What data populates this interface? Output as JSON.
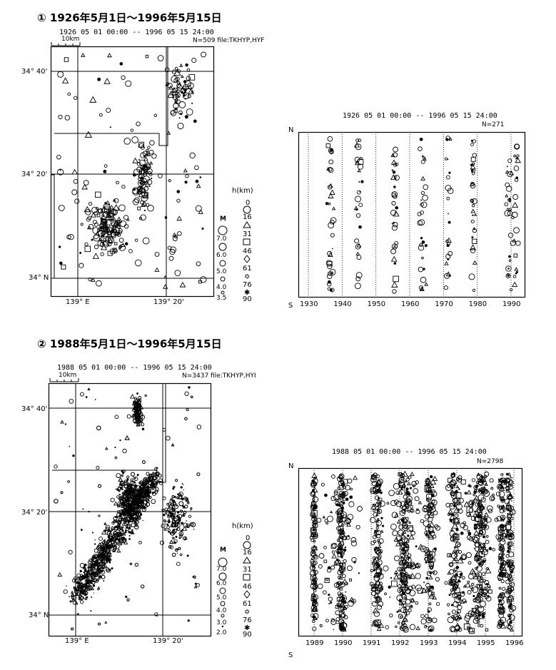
{
  "panel1": {
    "title": "① 1926年5月1日～1996年5月15日",
    "map": {
      "header": "1926 05 01 00:00  --  1996 05 15 24:00",
      "scale_label": "10km",
      "count": "N=509 file:TKHYP,HYF",
      "lat_labels": [
        "34° 40'",
        "34° 20'",
        "34° N"
      ],
      "lon_labels": [
        "139° E",
        "139° 20'"
      ]
    },
    "legend": {
      "depth_title": "h(km)",
      "depths": [
        "0",
        "16",
        "31",
        "46",
        "61",
        "76",
        "90"
      ],
      "mag_title": "M",
      "mags": [
        "7.0",
        "6.0",
        "5.0",
        "4.0",
        "3.5"
      ]
    },
    "timeplot": {
      "header": "1926 05 01 00:00  --  1996 05 15 24:00",
      "count": "N=271",
      "n_label": "N",
      "s_label": "S",
      "years": [
        "1930",
        "1940",
        "1950",
        "1960",
        "1970",
        "1980",
        "1990"
      ]
    }
  },
  "panel2": {
    "title": "② 1988年5月1日～1996年5月15日",
    "map": {
      "header": "1988 05 01 00:00  --  1996 05 15 24:00",
      "scale_label": "10km",
      "count": "N=3437 file:TKHYP,HYI",
      "lat_labels": [
        "34° 40'",
        "34° 20'",
        "34° N"
      ],
      "lon_labels": [
        "139° E",
        "139° 20'"
      ]
    },
    "legend": {
      "depth_title": "h(km)",
      "depths": [
        "0",
        "16",
        "31",
        "46",
        "61",
        "76",
        "90"
      ],
      "mag_title": "M",
      "mags": [
        "7.0",
        "6.0",
        "5.0",
        "4.0",
        "3.0",
        "2.0"
      ]
    },
    "timeplot": {
      "header": "1988 05 01 00:00  --  1996 05 15 24:00",
      "count": "N=2798",
      "n_label": "N",
      "s_label": "S",
      "years": [
        "1989",
        "1990",
        "1991",
        "1992",
        "1993",
        "1994",
        "1995",
        "1996"
      ]
    }
  }
}
